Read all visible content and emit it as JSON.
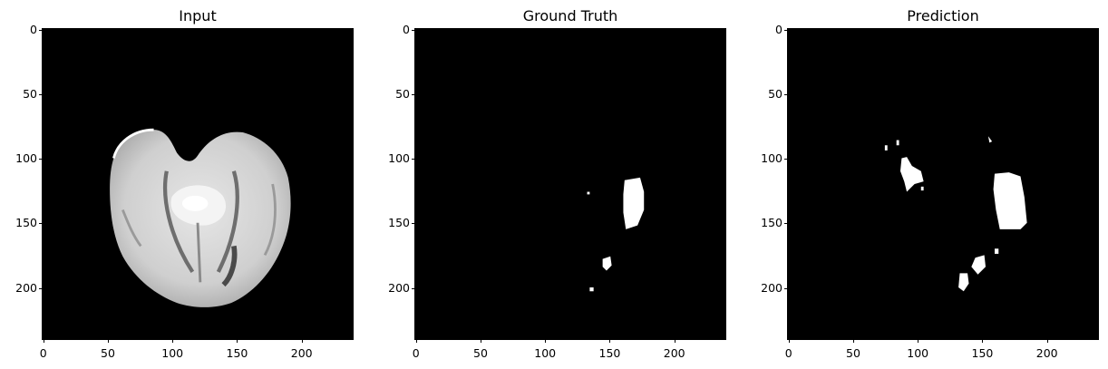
{
  "panels": [
    {
      "title": "Input"
    },
    {
      "title": "Ground Truth"
    },
    {
      "title": "Prediction"
    }
  ],
  "y_ticks": [
    "0",
    "50",
    "100",
    "150",
    "200"
  ],
  "x_ticks": [
    "0",
    "50",
    "100",
    "150",
    "200"
  ]
}
